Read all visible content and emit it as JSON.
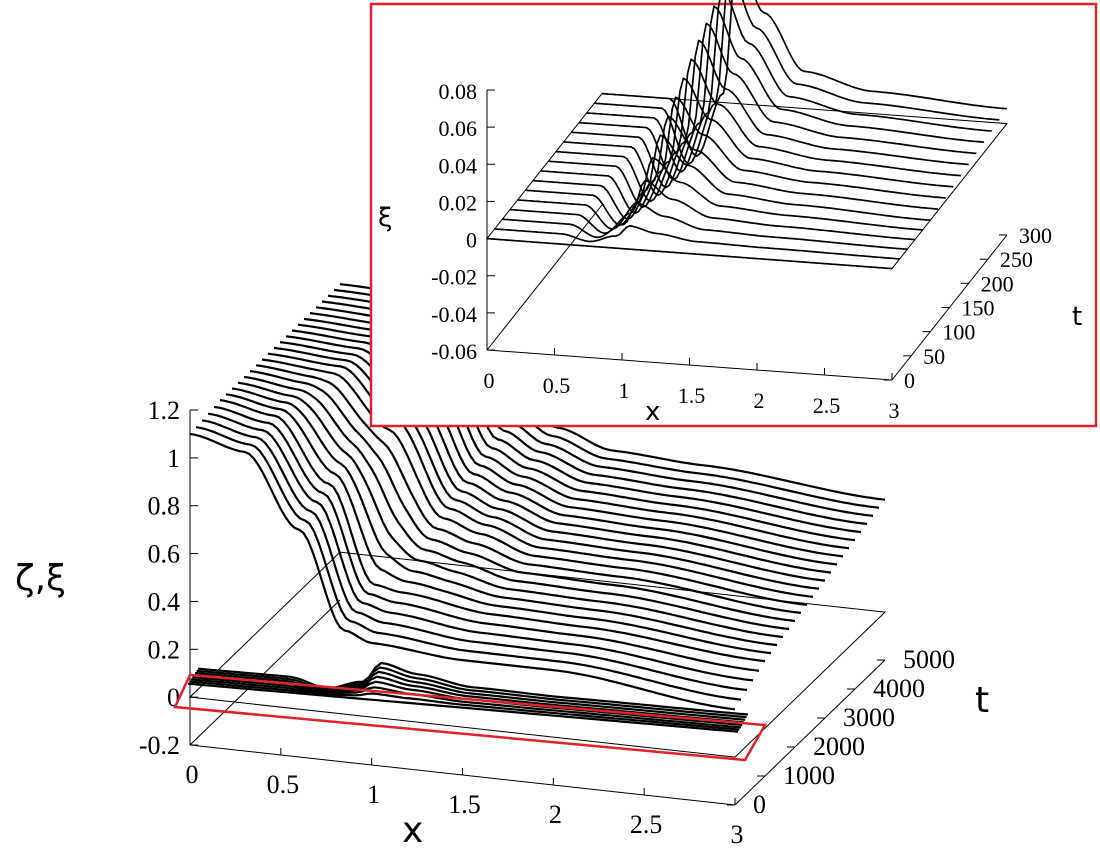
{
  "colors": {
    "highlight": "#e0232a",
    "curves": "#000000",
    "background": "#ffffff"
  },
  "chart_data": [
    {
      "type": "line",
      "view": "3d-waterfall",
      "xlabel": "x",
      "ylabel": "t",
      "zlabel": "ζ,ξ",
      "x_ticks": [
        "0",
        "0.5",
        "1",
        "1.5",
        "2",
        "2.5",
        "3"
      ],
      "t_ticks": [
        "0",
        "1000",
        "2000",
        "3000",
        "4000",
        "5000"
      ],
      "z_ticks": [
        "-0.2",
        "0",
        "0.2",
        "0.4",
        "0.6",
        "0.8",
        "1",
        "1.2"
      ],
      "xlim": [
        0,
        3
      ],
      "tlim": [
        0,
        5000
      ],
      "zlim": [
        -0.2,
        1.2
      ],
      "series": [
        {
          "t": 0,
          "x": [
            0,
            0.3,
            0.6,
            0.85,
            1.0,
            1.5,
            2.0,
            3.0
          ],
          "z": [
            1.1,
            1.05,
            0.75,
            0.35,
            0.31,
            0.28,
            0.28,
            0.2
          ]
        },
        {
          "t": 1000,
          "x": [
            0,
            0.3,
            0.6,
            0.85,
            1.0,
            1.5,
            2.0,
            3.0
          ],
          "z": [
            1.12,
            1.08,
            0.82,
            0.42,
            0.4,
            0.35,
            0.34,
            0.28
          ]
        },
        {
          "t": 2500,
          "x": [
            0,
            0.4,
            0.7,
            1.0,
            1.2,
            1.5,
            2.0,
            3.0
          ],
          "z": [
            1.12,
            1.1,
            0.9,
            0.55,
            0.5,
            0.43,
            0.42,
            0.35
          ]
        },
        {
          "t": 5000,
          "x": [
            0,
            0.5,
            0.8,
            1.0,
            1.2,
            1.5,
            2.0,
            3.0
          ],
          "z": [
            1.12,
            1.11,
            0.98,
            0.7,
            0.62,
            0.55,
            0.53,
            0.47
          ]
        }
      ],
      "highlighted_band": {
        "description": "small-amplitude ξ curves near zero",
        "zlim": [
          -0.06,
          0.08
        ]
      }
    },
    {
      "type": "line",
      "view": "3d-waterfall-inset",
      "xlabel": "x",
      "ylabel": "t",
      "zlabel": "ξ",
      "x_ticks": [
        "0",
        "0.5",
        "1",
        "1.5",
        "2",
        "2.5",
        "3"
      ],
      "t_ticks": [
        "0",
        "50",
        "100",
        "150",
        "200",
        "250",
        "300"
      ],
      "z_ticks": [
        "-0.06",
        "-0.04",
        "-0.02",
        "0",
        "0.02",
        "0.04",
        "0.06",
        "0.08"
      ],
      "xlim": [
        0,
        3
      ],
      "tlim": [
        0,
        300
      ],
      "zlim": [
        -0.06,
        0.08
      ],
      "series": [
        {
          "t": 0,
          "x": [
            0,
            0.5,
            1.0,
            1.5,
            2.0,
            3.0
          ],
          "z": [
            0,
            0,
            0,
            0,
            0,
            0
          ]
        },
        {
          "t": 100,
          "x": [
            0,
            0.5,
            0.7,
            0.9,
            1.0,
            1.2,
            1.5,
            2.0,
            3.0
          ],
          "z": [
            0.0,
            0.0,
            -0.015,
            0.005,
            0.035,
            0.02,
            0.006,
            0.003,
            0.0
          ]
        },
        {
          "t": 200,
          "x": [
            0,
            0.5,
            0.7,
            0.9,
            1.0,
            1.2,
            1.5,
            2.0,
            3.0
          ],
          "z": [
            0.0,
            0.0,
            -0.025,
            0.005,
            0.06,
            0.035,
            0.012,
            0.007,
            0.004
          ]
        },
        {
          "t": 300,
          "x": [
            0,
            0.5,
            0.7,
            0.9,
            1.0,
            1.2,
            1.5,
            2.0,
            3.0
          ],
          "z": [
            0.0,
            0.0,
            -0.03,
            0.005,
            0.08,
            0.05,
            0.02,
            0.012,
            0.008
          ]
        }
      ]
    }
  ]
}
